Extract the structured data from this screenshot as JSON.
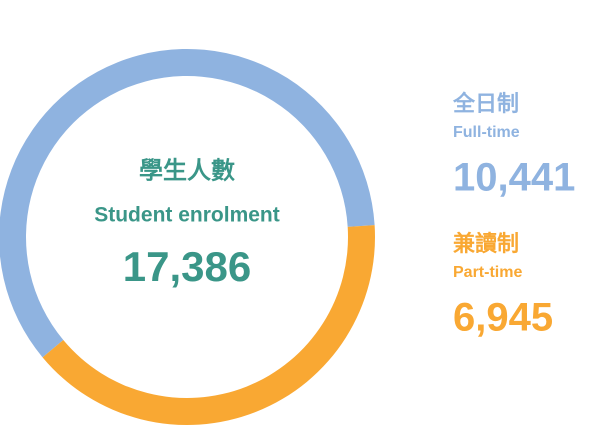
{
  "chart_data": {
    "type": "donut",
    "center_title_zh": "學生人數",
    "center_title_en": "Student enrolment",
    "total": 17386,
    "total_label": "17,386",
    "center_color": "#3a9688",
    "labels_zh": [
      "全日制",
      "兼讀制"
    ],
    "labels_en": [
      "Full-time",
      "Part-time"
    ],
    "values": [
      10441,
      6945
    ],
    "value_labels": [
      "10,441",
      "6,945"
    ],
    "colors": [
      "#8fb3e0",
      "#f9a833"
    ]
  }
}
